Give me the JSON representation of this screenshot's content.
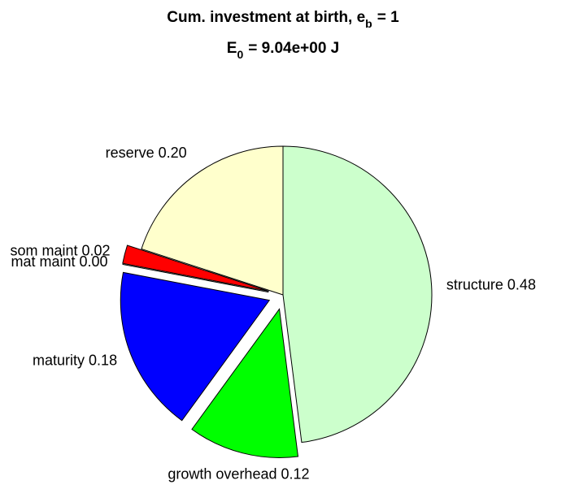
{
  "chart_data": {
    "type": "pie",
    "title": [
      "Cum. investment at birth, e",
      "b",
      "= 1"
    ],
    "subtitle": [
      "E",
      "0",
      "= 9.04e+00 J"
    ],
    "categories": [
      "structure",
      "growth overhead",
      "maturity",
      "mat maint",
      "som maint",
      "reserve"
    ],
    "values": [
      0.48,
      0.12,
      0.18,
      0.0,
      0.02,
      0.2
    ],
    "value_labels": [
      "0.48",
      "0.12",
      "0.18",
      "0.00",
      "0.02",
      "0.20"
    ],
    "colors": [
      "#ccffcc",
      "#00ff00",
      "#0000ff",
      "#8000ff",
      "#ff0000",
      "#ffffcc"
    ],
    "explode": [
      false,
      true,
      true,
      true,
      true,
      false
    ]
  }
}
